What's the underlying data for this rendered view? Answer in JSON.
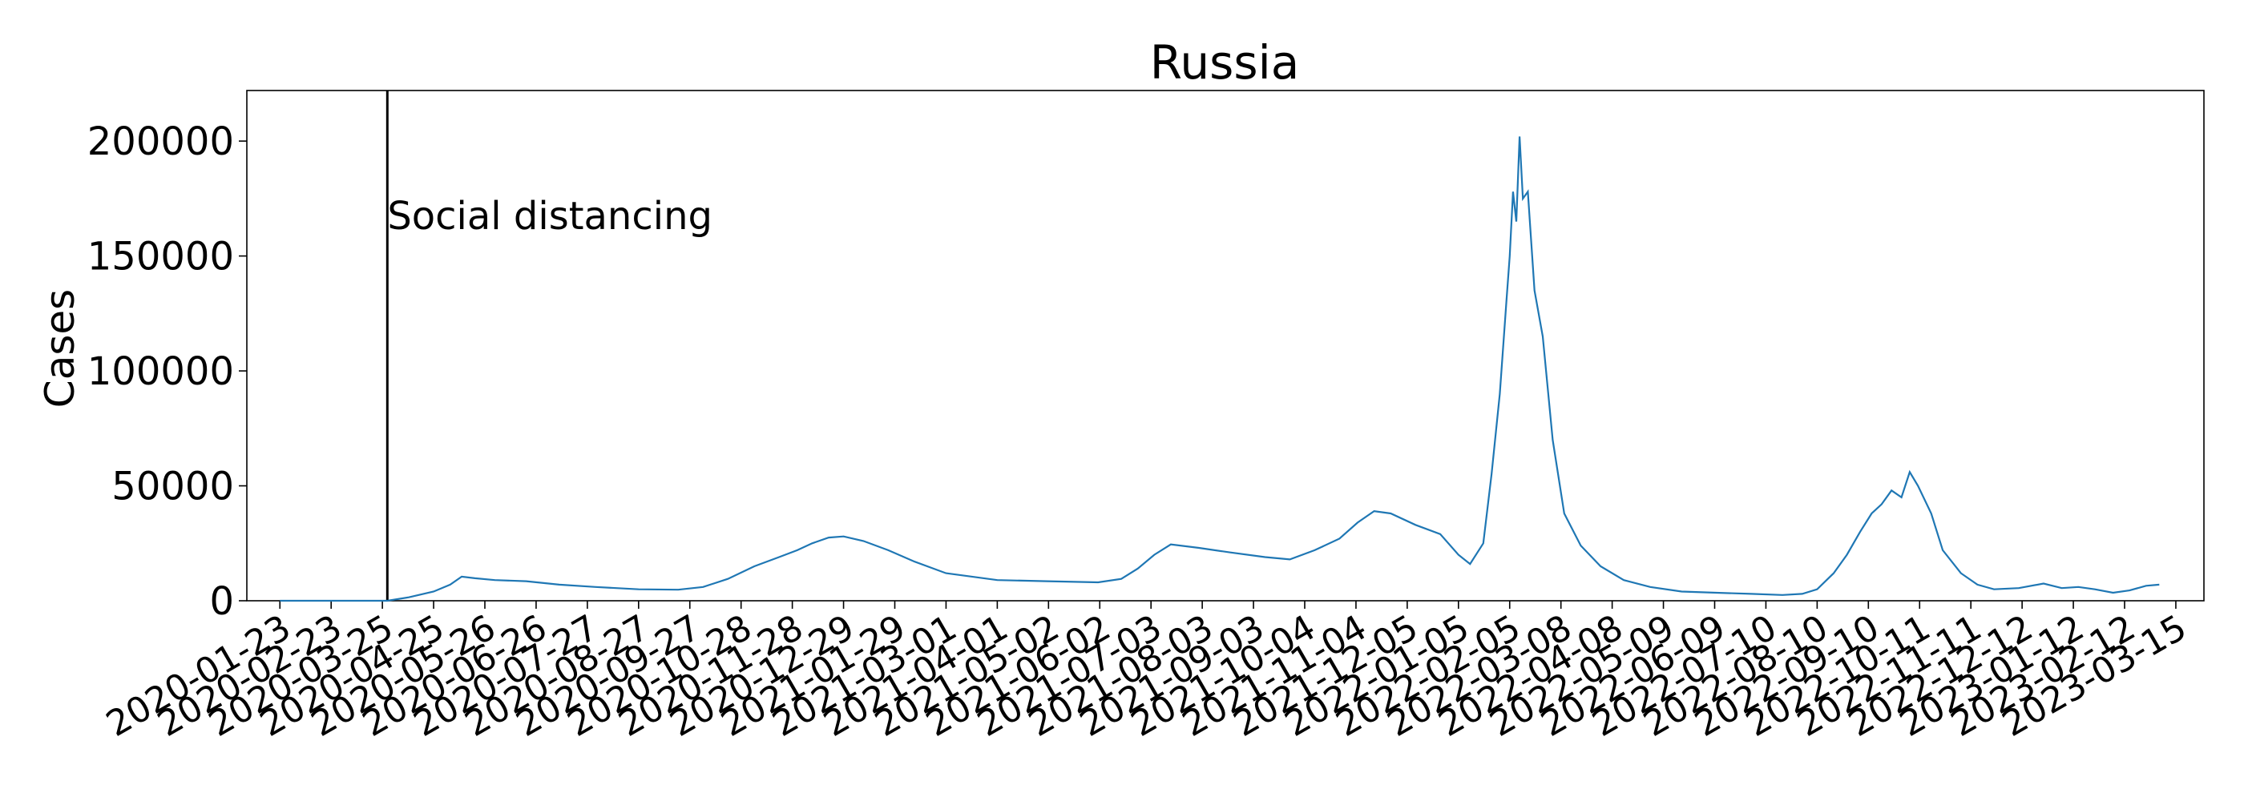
{
  "chart_data": {
    "type": "line",
    "title": "Russia",
    "xlabel": "",
    "ylabel": "Cases",
    "yticks": [
      0,
      50000,
      100000,
      150000,
      200000
    ],
    "ylim": [
      0,
      222000
    ],
    "xlim": [
      "2020-01-03",
      "2023-04-01"
    ],
    "xticks": [
      "2020-01-23",
      "2020-02-23",
      "2020-03-25",
      "2020-04-25",
      "2020-05-26",
      "2020-06-26",
      "2020-07-27",
      "2020-08-27",
      "2020-09-27",
      "2020-10-28",
      "2020-11-28",
      "2020-12-29",
      "2021-01-29",
      "2021-03-01",
      "2021-04-01",
      "2021-05-02",
      "2021-06-02",
      "2021-07-03",
      "2021-08-03",
      "2021-09-03",
      "2021-10-04",
      "2021-11-04",
      "2021-12-05",
      "2022-01-05",
      "2022-02-05",
      "2022-03-08",
      "2022-04-08",
      "2022-05-09",
      "2022-06-09",
      "2022-07-10",
      "2022-08-10",
      "2022-09-10",
      "2022-10-11",
      "2022-11-11",
      "2022-12-12",
      "2023-01-12",
      "2023-02-12",
      "2023-03-15"
    ],
    "grid": false,
    "series_color": "#1f77b4",
    "annotation": {
      "text": "Social distancing",
      "date": "2020-03-28"
    },
    "series": [
      {
        "x": [
          "2020-01-23",
          "2020-03-01",
          "2020-03-28",
          "2020-04-10",
          "2020-04-25",
          "2020-05-05",
          "2020-05-12",
          "2020-05-20",
          "2020-06-01",
          "2020-06-20",
          "2020-07-10",
          "2020-08-01",
          "2020-08-27",
          "2020-09-20",
          "2020-10-05",
          "2020-10-20",
          "2020-11-05",
          "2020-11-20",
          "2020-12-01",
          "2020-12-10",
          "2020-12-20",
          "2020-12-29",
          "2021-01-10",
          "2021-01-25",
          "2021-02-10",
          "2021-03-01",
          "2021-04-01",
          "2021-05-01",
          "2021-06-01",
          "2021-06-15",
          "2021-06-25",
          "2021-07-05",
          "2021-07-15",
          "2021-08-01",
          "2021-08-20",
          "2021-09-10",
          "2021-09-25",
          "2021-10-10",
          "2021-10-25",
          "2021-11-05",
          "2021-11-15",
          "2021-11-25",
          "2021-12-10",
          "2021-12-25",
          "2022-01-05",
          "2022-01-12",
          "2022-01-20",
          "2022-01-25",
          "2022-01-30",
          "2022-02-03",
          "2022-02-05",
          "2022-02-07",
          "2022-02-09",
          "2022-02-11",
          "2022-02-13",
          "2022-02-16",
          "2022-02-20",
          "2022-02-25",
          "2022-03-03",
          "2022-03-10",
          "2022-03-20",
          "2022-04-01",
          "2022-04-15",
          "2022-05-01",
          "2022-05-20",
          "2022-06-10",
          "2022-07-01",
          "2022-07-20",
          "2022-08-01",
          "2022-08-10",
          "2022-08-20",
          "2022-08-28",
          "2022-09-05",
          "2022-09-12",
          "2022-09-18",
          "2022-09-24",
          "2022-09-30",
          "2022-10-05",
          "2022-10-10",
          "2022-10-18",
          "2022-10-25",
          "2022-11-05",
          "2022-11-15",
          "2022-11-25",
          "2022-12-10",
          "2022-12-25",
          "2023-01-05",
          "2023-01-15",
          "2023-01-25",
          "2023-02-05",
          "2023-02-15",
          "2023-02-25",
          "2023-03-05"
        ],
        "values": [
          0,
          0,
          0,
          1500,
          4000,
          7000,
          10500,
          9800,
          9000,
          8500,
          7000,
          6000,
          5000,
          4800,
          6000,
          9500,
          15000,
          19000,
          22000,
          25000,
          27500,
          28000,
          26000,
          22000,
          17000,
          12000,
          9000,
          8500,
          8000,
          9500,
          14000,
          20000,
          24500,
          23000,
          21000,
          19000,
          18000,
          22000,
          27000,
          34000,
          39000,
          38000,
          33000,
          29000,
          20000,
          16000,
          25000,
          55000,
          90000,
          130000,
          150000,
          178000,
          165000,
          202000,
          175000,
          178000,
          135000,
          115000,
          70000,
          38000,
          24000,
          15000,
          9000,
          6000,
          4000,
          3500,
          3000,
          2500,
          3000,
          5000,
          12000,
          20000,
          30000,
          38000,
          42000,
          48000,
          45000,
          56000,
          50000,
          38000,
          22000,
          12000,
          7000,
          5000,
          5500,
          7500,
          5500,
          6000,
          5000,
          3500,
          4500,
          6500,
          7000
        ]
      }
    ]
  }
}
